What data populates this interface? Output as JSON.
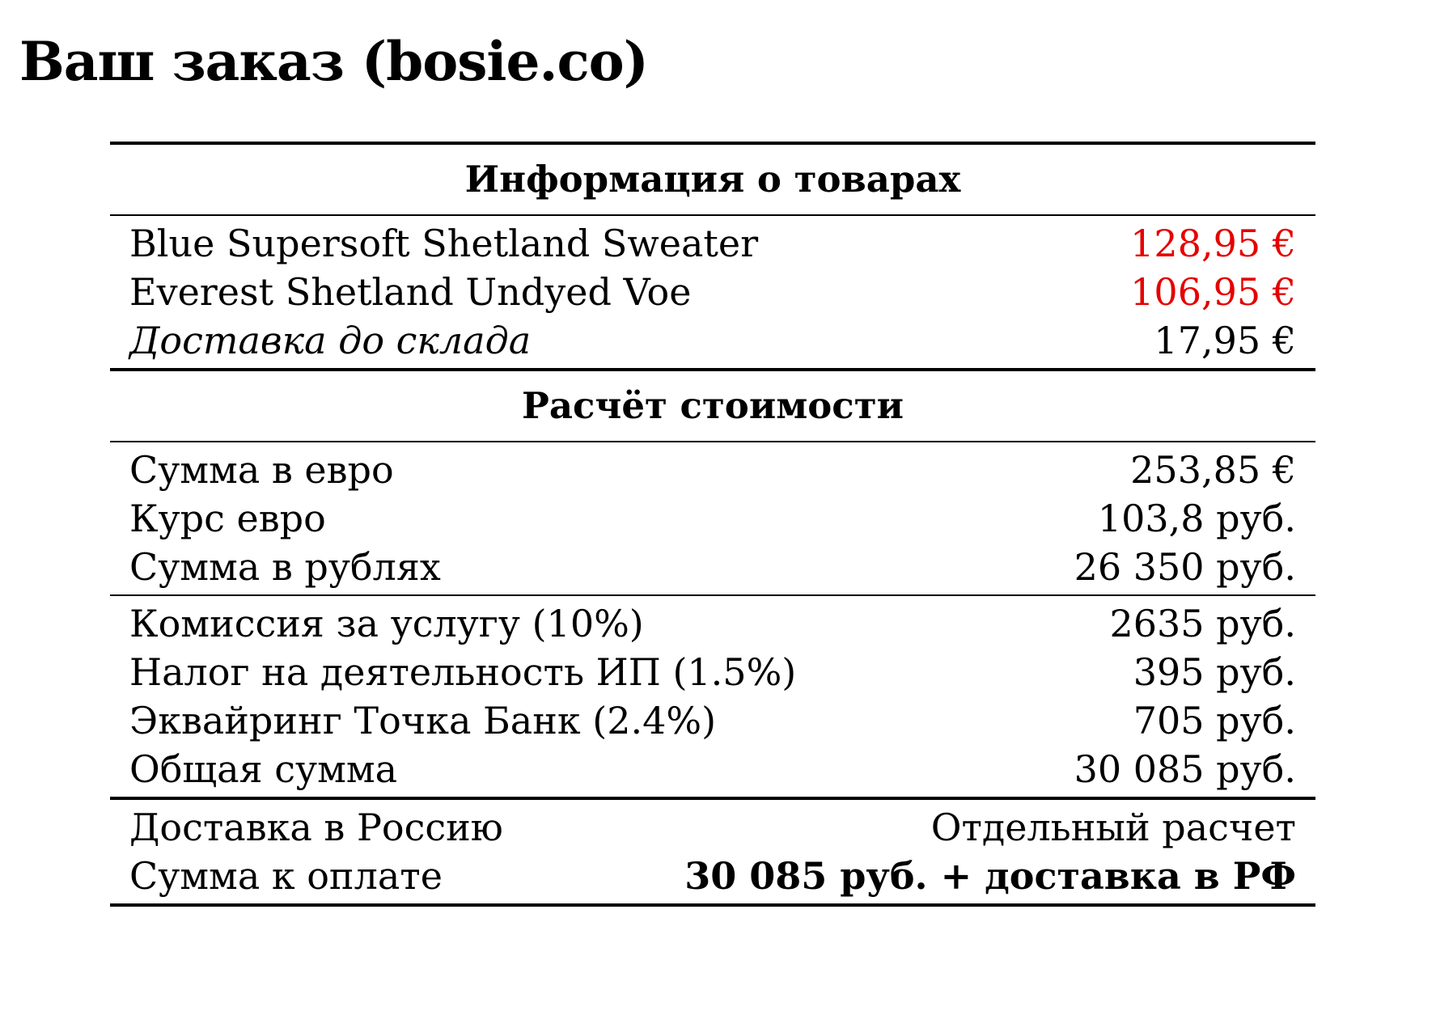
{
  "title": "Ваш заказ (bosie.co)",
  "colors": {
    "text": "#000000",
    "price_highlight": "#e60000",
    "background": "#ffffff"
  },
  "products_section": {
    "header": "Информация о товарах",
    "items": [
      {
        "label": "Blue Supersoft Shetland Sweater",
        "value": "128,95 €",
        "highlight": true
      },
      {
        "label": "Everest Shetland Undyed Voe",
        "value": "106,95 €",
        "highlight": true
      },
      {
        "label": "Доставка до склада",
        "value": "17,95 €",
        "italic": true
      }
    ]
  },
  "calculation_section": {
    "header": "Расчёт стоимости",
    "conversion": [
      {
        "label": "Сумма в евро",
        "value": "253,85 €"
      },
      {
        "label": "Курс евро",
        "value": "103,8 руб."
      },
      {
        "label": "Сумма в рублях",
        "value": "26 350 руб."
      }
    ],
    "fees": [
      {
        "label": "Комиссия за услугу (10%)",
        "value": "2635 руб."
      },
      {
        "label": "Налог на деятельность ИП (1.5%)",
        "value": "395 руб."
      },
      {
        "label": "Эквайринг Точка Банк (2.4%)",
        "value": "705 руб."
      },
      {
        "label": "Общая сумма",
        "value": "30 085 руб."
      }
    ],
    "final": [
      {
        "label": "Доставка в Россию",
        "value": "Отдельный расчет"
      },
      {
        "label": "Сумма к оплате",
        "value": "30 085 руб. + доставка в РФ",
        "bold": true
      }
    ]
  }
}
